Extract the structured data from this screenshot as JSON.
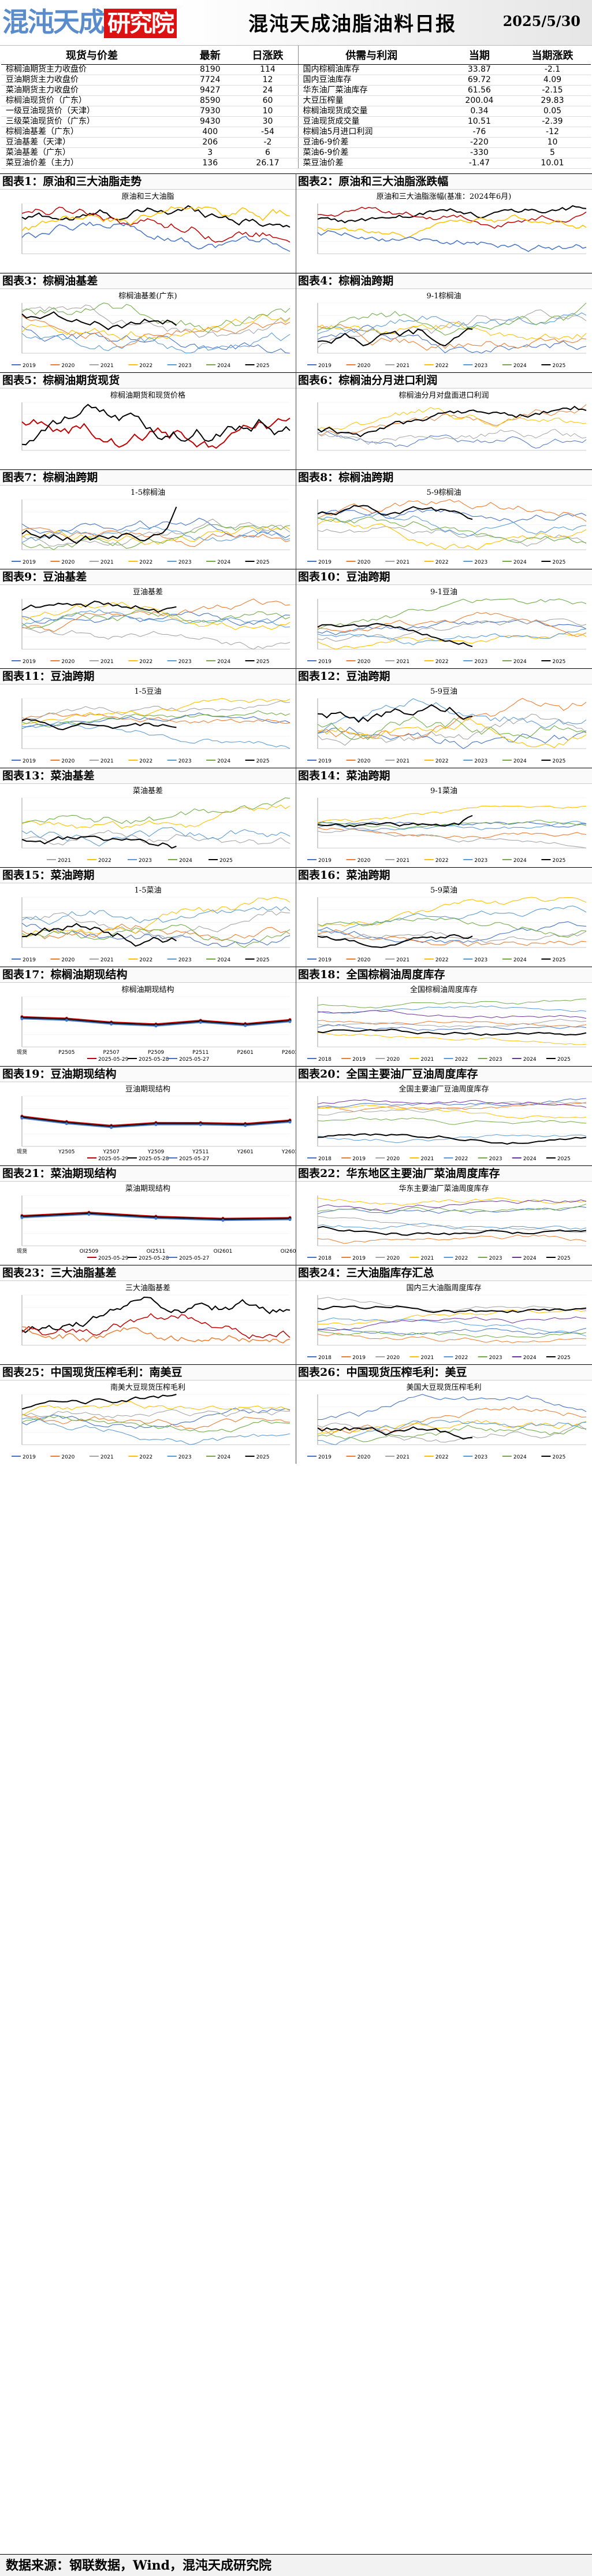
{
  "header": {
    "logo_left": "混沌天成",
    "logo_right": "研究院",
    "title": "混沌天成油脂油料日报",
    "date": "2025/5/30"
  },
  "price_table": {
    "headers": [
      "现货与价差",
      "最新",
      "日涨跌",
      "供需与利润",
      "当期",
      "当期涨跌"
    ],
    "rows": [
      [
        "棕榈油期货主力收盘价",
        "8190",
        "114",
        "国内棕榈油库存",
        "33.87",
        "-2.1"
      ],
      [
        "豆油期货主力收盘价",
        "7724",
        "12",
        "国内豆油库存",
        "69.72",
        "4.09"
      ],
      [
        "菜油期货主力收盘价",
        "9427",
        "24",
        "华东油厂菜油库存",
        "61.56",
        "-2.15"
      ],
      [
        "棕榈油现货价（广东）",
        "8590",
        "60",
        "大豆压榨量",
        "200.04",
        "29.83"
      ],
      [
        "一级豆油现货价（天津）",
        "7930",
        "10",
        "棕榈油现货成交量",
        "0.34",
        "0.05"
      ],
      [
        "三级菜油现货价（广东）",
        "9430",
        "30",
        "豆油现货成交量",
        "10.51",
        "-2.39"
      ],
      [
        "棕榈油基差（广东）",
        "400",
        "-54",
        "棕榈油5月进口利润",
        "-76",
        "-12"
      ],
      [
        "豆油基差（天津）",
        "206",
        "-2",
        "豆油6-9价差",
        "-220",
        "10"
      ],
      [
        "菜油基差（广东）",
        "3",
        "6",
        "菜油6-9价差",
        "-330",
        "5"
      ],
      [
        "菜豆油价差（主力）",
        "136",
        "26.17",
        "菜豆油价差",
        "-1.47",
        "10.01"
      ]
    ]
  },
  "panels": [
    {
      "label": "图表1：原油和三大油脂走势",
      "chart_title": "原油和三大油脂"
    },
    {
      "label": "图表2：原油和三大油脂涨跌幅",
      "chart_title": "原油和三大油脂涨幅(基准：2024年6月)"
    },
    {
      "label": "图表3：棕榈油基差",
      "chart_title": "棕榈油基差(广东)"
    },
    {
      "label": "图表4：棕榈油跨期",
      "chart_title": "9-1棕榈油"
    },
    {
      "label": "图表5：棕榈油期货现货",
      "chart_title": "棕榈油期货和现货价格"
    },
    {
      "label": "图表6：棕榈油分月进口利润",
      "chart_title": "棕榈油分月对盘面进口利润"
    },
    {
      "label": "图表7：棕榈油跨期",
      "chart_title": "1-5棕榈油"
    },
    {
      "label": "图表8：棕榈油跨期",
      "chart_title": "5-9棕榈油"
    },
    {
      "label": "图表9：豆油基差",
      "chart_title": "豆油基差"
    },
    {
      "label": "图表10：豆油跨期",
      "chart_title": "9-1豆油"
    },
    {
      "label": "图表11：豆油跨期",
      "chart_title": "1-5豆油"
    },
    {
      "label": "图表12：豆油跨期",
      "chart_title": "5-9豆油"
    },
    {
      "label": "图表13：菜油基差",
      "chart_title": "菜油基差"
    },
    {
      "label": "图表14：菜油跨期",
      "chart_title": "9-1菜油"
    },
    {
      "label": "图表15：菜油跨期",
      "chart_title": "1-5菜油"
    },
    {
      "label": "图表16：菜油跨期",
      "chart_title": "5-9菜油"
    },
    {
      "label": "图表17：棕榈油期现结构",
      "chart_title": "棕榈油期现结构"
    },
    {
      "label": "图表18：全国棕榈油周度库存",
      "chart_title": "全国棕榈油周度库存"
    },
    {
      "label": "图表19：豆油期现结构",
      "chart_title": "豆油期现结构"
    },
    {
      "label": "图表20：全国主要油厂豆油周度库存",
      "chart_title": "全国主要油厂豆油周度库存"
    },
    {
      "label": "图表21：菜油期现结构",
      "chart_title": "菜油期现结构"
    },
    {
      "label": "图表22：华东地区主要油厂菜油周度库存",
      "chart_title": "华东主要油厂菜油周度库存"
    },
    {
      "label": "图表23：三大油脂基差",
      "chart_title": "三大油脂基差"
    },
    {
      "label": "图表24：三大油脂库存汇总",
      "chart_title": "国内三大油脂周度库存"
    },
    {
      "label": "图表25：中国现货压榨毛利：南美豆",
      "chart_title": "南美大豆现货压榨毛利"
    },
    {
      "label": "图表26：中国现货压榨毛利：美豆",
      "chart_title": "美国大豆现货压榨毛利"
    }
  ],
  "legend_years": [
    "2019",
    "2020",
    "2021",
    "2022",
    "2023",
    "2024",
    "2025"
  ],
  "legend_years_5": [
    "2021",
    "2022",
    "2023",
    "2024",
    "2025"
  ],
  "legend_years_9": [
    "2016",
    "2017",
    "2018",
    "2019",
    "2020",
    "2021",
    "2022",
    "2023",
    "2024",
    "2025"
  ],
  "legend_struct_palm": [
    "2025-05-29",
    "2025-05-28",
    "2025-05-27"
  ],
  "struct_palm_x": [
    "现货",
    "P2505",
    "P2507",
    "P2509",
    "P2511",
    "P2601",
    "P2603"
  ],
  "struct_soy_x": [
    "现货",
    "Y2505",
    "Y2507",
    "Y2509",
    "Y2511",
    "Y2601",
    "Y2603"
  ],
  "struct_rape_x": [
    "现货",
    "OI2509",
    "OI2511",
    "OI2601",
    "OI2603"
  ],
  "footer": "数据来源：钢联数据，Wind，混沌天成研究院",
  "colors": {
    "y2019": "#4472c4",
    "y2020": "#ed7d31",
    "y2021": "#a5a5a5",
    "y2022": "#ffc000",
    "y2023": "#5b9bd5",
    "y2024": "#70ad47",
    "y2025": "#c00000",
    "purple": "#7030a0",
    "black": "#000000"
  }
}
